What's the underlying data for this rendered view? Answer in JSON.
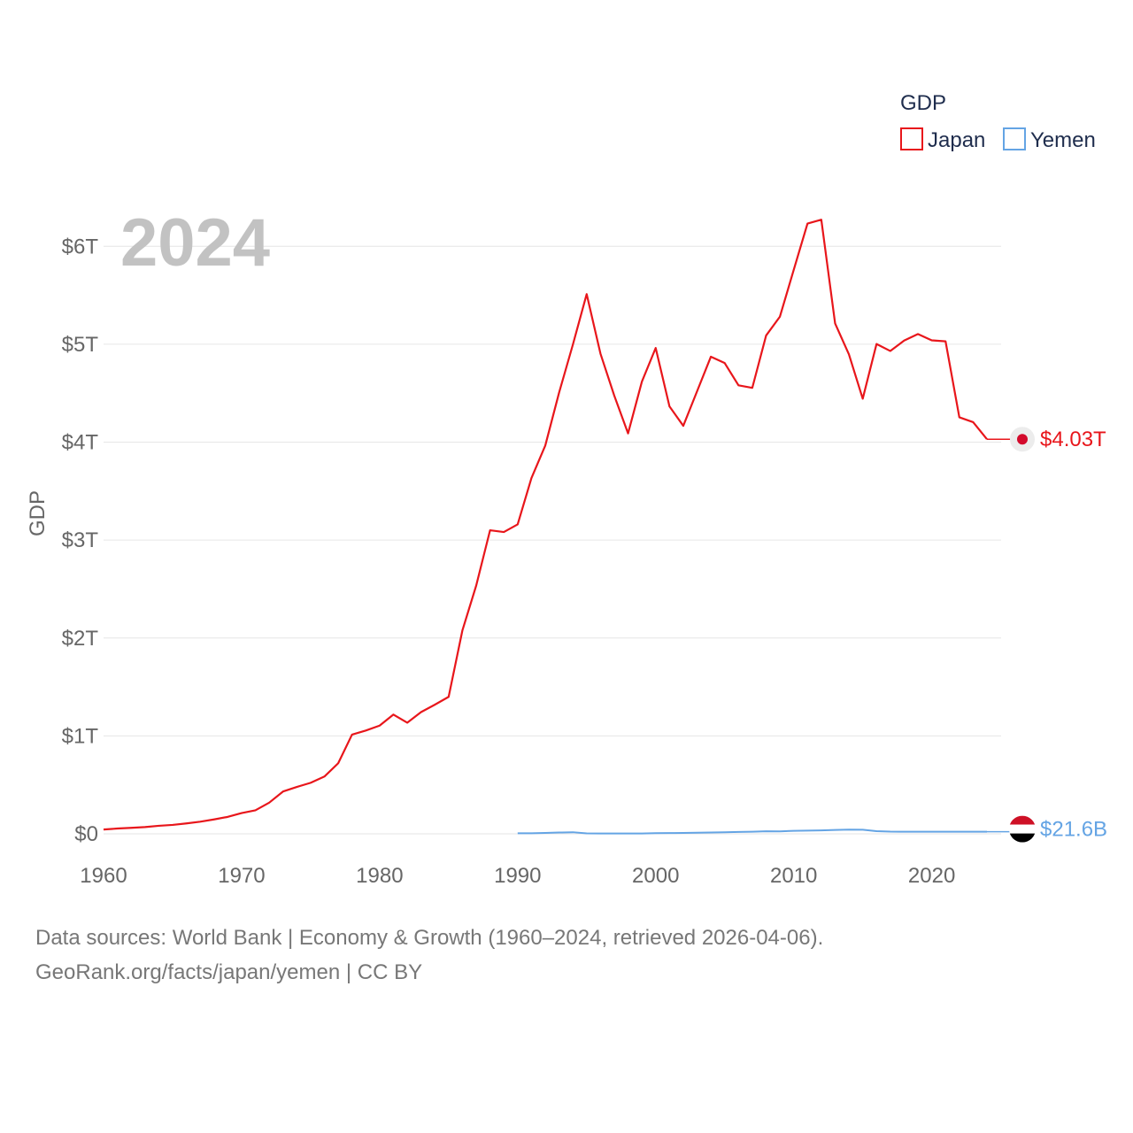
{
  "chart_data": {
    "type": "line",
    "year_label": "2024",
    "ylabel": "GDP",
    "xlabel": "",
    "xlim": [
      1960,
      2024
    ],
    "ylim": [
      0,
      6.5
    ],
    "x_ticks": [
      1960,
      1970,
      1980,
      1990,
      2000,
      2010,
      2020
    ],
    "x_tick_labels": [
      "1960",
      "1970",
      "1980",
      "1990",
      "2000",
      "2010",
      "2020"
    ],
    "y_ticks": [
      0,
      1,
      2,
      3,
      4,
      5,
      6
    ],
    "y_tick_labels": [
      "$0",
      "$1T",
      "$2T",
      "$3T",
      "$4T",
      "$5T",
      "$6T"
    ],
    "units": "trillions USD",
    "legend": {
      "title": "GDP",
      "position": "top-right"
    },
    "series": [
      {
        "name": "Japan",
        "color": "#e8161b",
        "end_label": "$4.03T",
        "x": [
          1960,
          1961,
          1962,
          1963,
          1964,
          1965,
          1966,
          1967,
          1968,
          1969,
          1970,
          1971,
          1972,
          1973,
          1974,
          1975,
          1976,
          1977,
          1978,
          1979,
          1980,
          1981,
          1982,
          1983,
          1984,
          1985,
          1986,
          1987,
          1988,
          1989,
          1990,
          1991,
          1992,
          1993,
          1994,
          1995,
          1996,
          1997,
          1998,
          1999,
          2000,
          2001,
          2002,
          2003,
          2004,
          2005,
          2006,
          2007,
          2008,
          2009,
          2010,
          2011,
          2012,
          2013,
          2014,
          2015,
          2016,
          2017,
          2018,
          2019,
          2020,
          2021,
          2022,
          2023,
          2024
        ],
        "values": [
          0.044,
          0.054,
          0.061,
          0.069,
          0.082,
          0.091,
          0.106,
          0.124,
          0.147,
          0.173,
          0.212,
          0.24,
          0.318,
          0.432,
          0.479,
          0.521,
          0.585,
          0.721,
          1.013,
          1.055,
          1.105,
          1.218,
          1.135,
          1.243,
          1.319,
          1.399,
          2.079,
          2.537,
          3.1,
          3.082,
          3.16,
          3.634,
          3.965,
          4.505,
          4.996,
          5.512,
          4.904,
          4.475,
          4.09,
          4.618,
          4.962,
          4.365,
          4.167,
          4.52,
          4.873,
          4.808,
          4.581,
          4.555,
          5.089,
          5.282,
          5.759,
          6.233,
          6.272,
          5.212,
          4.897,
          4.444,
          5.003,
          4.931,
          5.038,
          5.104,
          5.04,
          5.03,
          4.254,
          4.204,
          4.03
        ]
      },
      {
        "name": "Yemen",
        "color": "#64a4e4",
        "end_label": "$21.6B",
        "x": [
          1990,
          1991,
          1992,
          1993,
          1994,
          1995,
          1996,
          1997,
          1998,
          1999,
          2000,
          2001,
          2002,
          2003,
          2004,
          2005,
          2006,
          2007,
          2008,
          2009,
          2010,
          2011,
          2012,
          2013,
          2014,
          2015,
          2016,
          2017,
          2018,
          2019,
          2020,
          2021,
          2022,
          2023,
          2024
        ],
        "values": [
          0.0056,
          0.0061,
          0.0095,
          0.0131,
          0.0164,
          0.0045,
          0.0029,
          0.0032,
          0.0029,
          0.0033,
          0.0067,
          0.0074,
          0.0092,
          0.0109,
          0.0132,
          0.016,
          0.0194,
          0.022,
          0.0263,
          0.0252,
          0.0309,
          0.0325,
          0.0352,
          0.04,
          0.0432,
          0.0423,
          0.027,
          0.0225,
          0.0216,
          0.0216,
          0.0216,
          0.0216,
          0.0216,
          0.0216,
          0.0216
        ]
      }
    ]
  },
  "footer": {
    "line1": "Data sources: World Bank | Economy & Growth (1960–2024, retrieved 2026-04-06).",
    "line2": "GeoRank.org/facts/japan/yemen | CC BY"
  }
}
